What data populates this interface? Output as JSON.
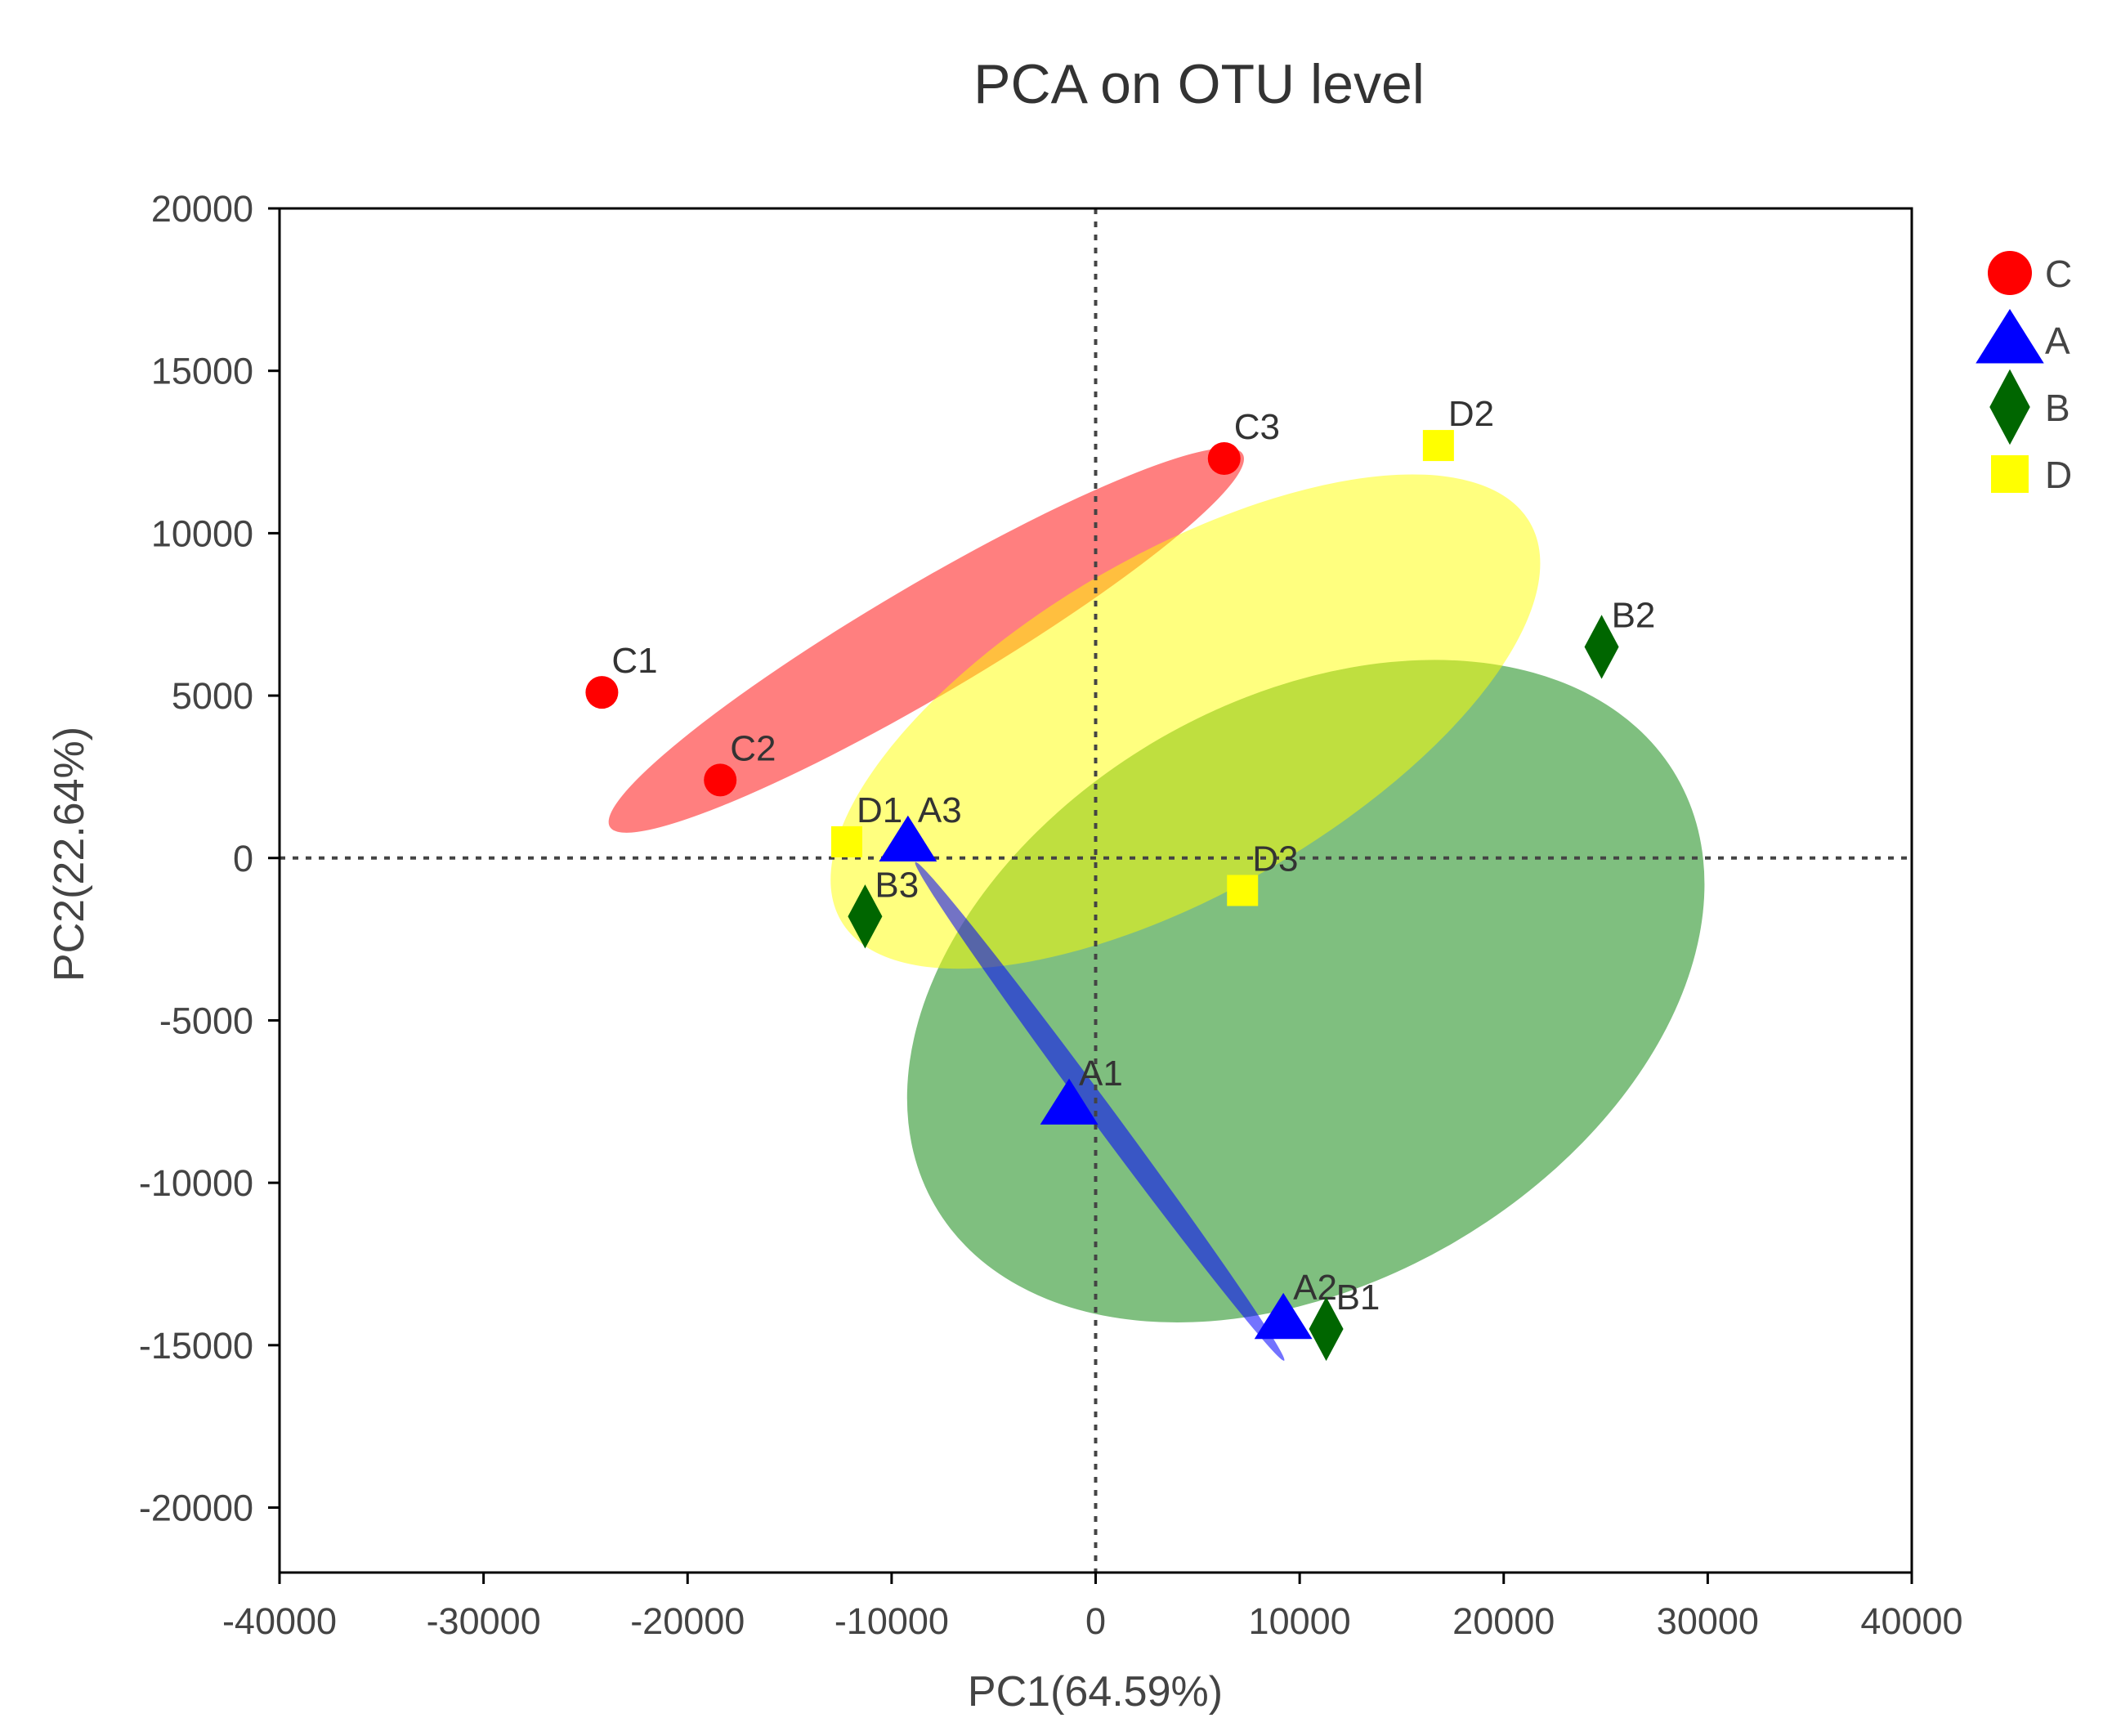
{
  "chart_data": {
    "type": "scatter",
    "title": "PCA on OTU level",
    "xlabel": "PC1(64.59%)",
    "ylabel": "PC2(22.64%)",
    "xlim": [
      -40000,
      40000
    ],
    "ylim": [
      -22000,
      20000
    ],
    "xticks": [
      -40000,
      -30000,
      -20000,
      -10000,
      0,
      10000,
      20000,
      30000,
      40000
    ],
    "yticks": [
      20000,
      15000,
      10000,
      5000,
      0,
      -5000,
      -10000,
      -15000,
      -20000
    ],
    "xtick_labels": [
      "-40000",
      "-30000",
      "-20000",
      "-10000",
      "0",
      "10000",
      "20000",
      "30000",
      "40000"
    ],
    "ytick_labels": [
      "20000",
      "15000",
      "10000",
      "5000",
      "0",
      "-5000",
      "-10000",
      "-15000",
      "-20000"
    ],
    "reference_lines": {
      "x": 0,
      "y": 0,
      "style": "dotted"
    },
    "legend_position": "right",
    "series": [
      {
        "name": "C",
        "marker": "circle",
        "color": "#ff0000",
        "ellipse": {
          "color": "#ff0000",
          "opacity": 0.5,
          "cx": -8300,
          "cy": 6700,
          "rx": 18000,
          "ry": 2700,
          "angle_deg": 30.5
        },
        "points": [
          {
            "label": "C1",
            "x": -24200,
            "y": 5100
          },
          {
            "label": "C2",
            "x": -18400,
            "y": 2400
          },
          {
            "label": "C3",
            "x": 6300,
            "y": 12300
          }
        ]
      },
      {
        "name": "A",
        "marker": "triangle",
        "color": "#0000ff",
        "ellipse": {
          "color": "#0000ff",
          "opacity": 0.55,
          "cx": 200,
          "cy": -7800,
          "rx": 15200,
          "ry": 550,
          "angle_deg": -53.5
        },
        "points": [
          {
            "label": "A1",
            "x": -1300,
            "y": -7600
          },
          {
            "label": "A2",
            "x": 9200,
            "y": -14200
          },
          {
            "label": "A3",
            "x": -9200,
            "y": 500
          }
        ]
      },
      {
        "name": "B",
        "marker": "diamond",
        "color": "#006600",
        "ellipse": {
          "color": "#008000",
          "opacity": 0.5,
          "cx": 10300,
          "cy": -4100,
          "rx": 21000,
          "ry": 14300,
          "angle_deg": 30
        },
        "points": [
          {
            "label": "B1",
            "x": 11300,
            "y": -14500
          },
          {
            "label": "B2",
            "x": 24800,
            "y": 6500
          },
          {
            "label": "B3",
            "x": -11300,
            "y": -1800
          }
        ]
      },
      {
        "name": "D",
        "marker": "square",
        "color": "#ffff00",
        "ellipse": {
          "color": "#ffff00",
          "opacity": 0.5,
          "cx": 4400,
          "cy": 4200,
          "rx": 19500,
          "ry": 8300,
          "angle_deg": 30
        },
        "points": [
          {
            "label": "D1",
            "x": -12200,
            "y": 500
          },
          {
            "label": "D2",
            "x": 16800,
            "y": 12700
          },
          {
            "label": "D3",
            "x": 7200,
            "y": -1000
          }
        ]
      }
    ],
    "legend_order": [
      "C",
      "A",
      "B",
      "D"
    ]
  }
}
